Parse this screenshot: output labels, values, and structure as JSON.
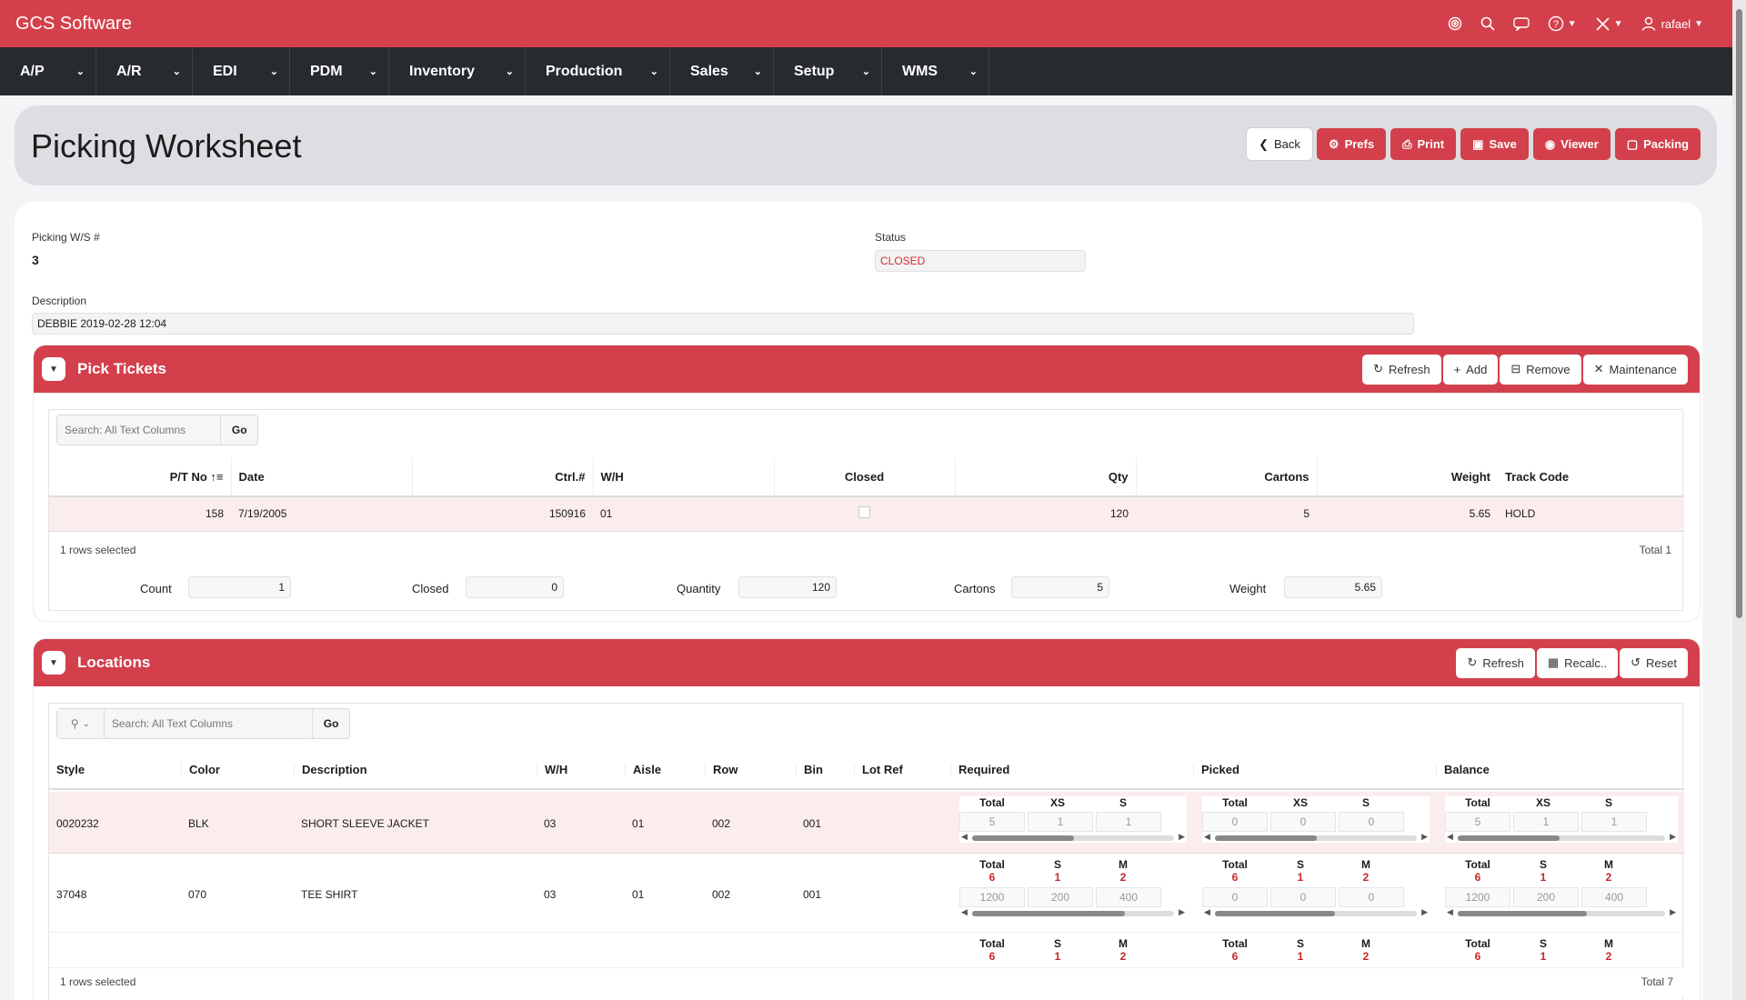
{
  "app": {
    "title": "GCS Software",
    "user": "rafael",
    "icons": [
      "target-icon",
      "search-icon",
      "chat-icon",
      "help-icon",
      "tools-icon",
      "user-icon"
    ]
  },
  "nav": [
    {
      "label": "A/P"
    },
    {
      "label": "A/R"
    },
    {
      "label": "EDI"
    },
    {
      "label": "PDM"
    },
    {
      "label": "Inventory"
    },
    {
      "label": "Production"
    },
    {
      "label": "Sales"
    },
    {
      "label": "Setup"
    },
    {
      "label": "WMS"
    }
  ],
  "page": {
    "title": "Picking Worksheet",
    "buttons": {
      "back": "Back",
      "prefs": "Prefs",
      "print": "Print",
      "save": "Save",
      "viewer": "Viewer",
      "packing": "Packing"
    }
  },
  "form": {
    "ws_label": "Picking W/S #",
    "ws_value": "3",
    "status_label": "Status",
    "status_value": "CLOSED",
    "desc_label": "Description",
    "desc_value": "DEBBIE 2019-02-28 12:04"
  },
  "pick": {
    "title": "Pick Tickets",
    "buttons": {
      "refresh": "Refresh",
      "add": "Add",
      "remove": "Remove",
      "maintenance": "Maintenance"
    },
    "search_placeholder": "Search: All Text Columns",
    "go": "Go",
    "columns": {
      "pt": "P/T No",
      "date": "Date",
      "ctrl": "Ctrl.#",
      "wh": "W/H",
      "closed": "Closed",
      "qty": "Qty",
      "cartons": "Cartons",
      "weight": "Weight",
      "track": "Track Code"
    },
    "rows": [
      {
        "pt": "158",
        "date": "7/19/2005",
        "ctrl": "150916",
        "wh": "01",
        "qty": "120",
        "cartons": "5",
        "weight": "5.65",
        "track": "HOLD"
      }
    ],
    "selected": "1 rows selected",
    "total": "Total 1",
    "summary": {
      "count_label": "Count",
      "count": "1",
      "closed_label": "Closed",
      "closed": "0",
      "quantity_label": "Quantity",
      "quantity": "120",
      "cartons_label": "Cartons",
      "cartons": "5",
      "weight_label": "Weight",
      "weight": "5.65"
    }
  },
  "loc": {
    "title": "Locations",
    "buttons": {
      "refresh": "Refresh",
      "recalc": "Recalc..",
      "reset": "Reset"
    },
    "search_placeholder": "Search: All Text Columns",
    "go": "Go",
    "columns": {
      "style": "Style",
      "color": "Color",
      "desc": "Description",
      "wh": "W/H",
      "aisle": "Aisle",
      "row": "Row",
      "bin": "Bin",
      "lotref": "Lot Ref",
      "required": "Required",
      "picked": "Picked",
      "balance": "Balance"
    },
    "rows": [
      {
        "style": "0020232",
        "color": "BLK",
        "desc": "SHORT SLEEVE JACKET",
        "wh": "03",
        "aisle": "01",
        "row": "002",
        "bin": "001",
        "req": {
          "heads": [
            "Total",
            "XS",
            "S"
          ],
          "vals": [
            "5",
            "1",
            "1"
          ]
        },
        "pick": {
          "heads": [
            "Total",
            "XS",
            "S"
          ],
          "vals": [
            "0",
            "0",
            "0"
          ]
        },
        "bal": {
          "heads": [
            "Total",
            "XS",
            "S"
          ],
          "vals": [
            "5",
            "1",
            "1"
          ]
        }
      },
      {
        "style": "37048",
        "color": "070",
        "desc": "TEE SHIRT",
        "wh": "03",
        "aisle": "01",
        "row": "002",
        "bin": "001",
        "req": {
          "heads": [
            "Total",
            "S",
            "M"
          ],
          "reds": [
            "6",
            "1",
            "2"
          ],
          "vals": [
            "1200",
            "200",
            "400"
          ]
        },
        "pick": {
          "heads": [
            "Total",
            "S",
            "M"
          ],
          "reds": [
            "6",
            "1",
            "2"
          ],
          "vals": [
            "0",
            "0",
            "0"
          ]
        },
        "bal": {
          "heads": [
            "Total",
            "S",
            "M"
          ],
          "reds": [
            "6",
            "1",
            "2"
          ],
          "vals": [
            "1200",
            "200",
            "400"
          ]
        }
      },
      {
        "req": {
          "heads": [
            "Total",
            "S",
            "M"
          ],
          "reds": [
            "6",
            "1",
            "2"
          ]
        },
        "pick": {
          "heads": [
            "Total",
            "S",
            "M"
          ],
          "reds": [
            "6",
            "1",
            "2"
          ]
        },
        "bal": {
          "heads": [
            "Total",
            "S",
            "M"
          ],
          "reds": [
            "6",
            "1",
            "2"
          ]
        }
      }
    ],
    "selected": "1 rows selected",
    "total": "Total 7"
  },
  "colors": {
    "accent": "#d3404b",
    "nav": "#272a2e",
    "status": "#d32f2f"
  }
}
